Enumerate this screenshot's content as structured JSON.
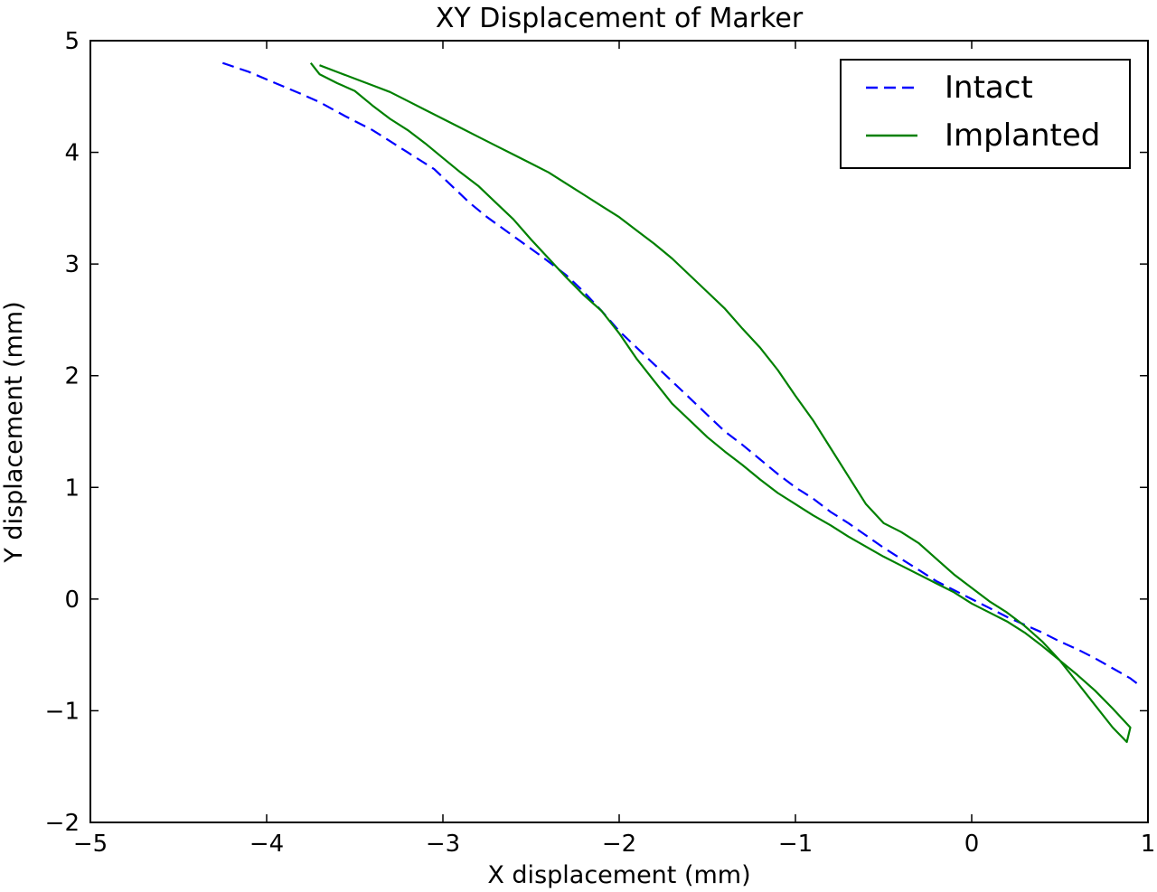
{
  "chart_data": {
    "type": "line",
    "title": "XY Displacement of Marker",
    "xlabel": "X displacement (mm)",
    "ylabel": "Y displacement (mm)",
    "xlim": [
      -5,
      1
    ],
    "ylim": [
      -2,
      5
    ],
    "x_ticks": [
      -5,
      -4,
      -3,
      -2,
      -1,
      0,
      1
    ],
    "y_ticks": [
      -2,
      -1,
      0,
      1,
      2,
      3,
      4,
      5
    ],
    "x_tick_labels": [
      "−5",
      "−4",
      "−3",
      "−2",
      "−1",
      "0",
      "1"
    ],
    "y_tick_labels": [
      "−2",
      "−1",
      "0",
      "1",
      "2",
      "3",
      "4",
      "5"
    ],
    "grid": false,
    "legend_position": "top-right",
    "series": [
      {
        "name": "Intact",
        "color": "#0000ff",
        "style": "dashed",
        "x": [
          -4.25,
          -4.1,
          -3.95,
          -3.8,
          -3.7,
          -3.55,
          -3.4,
          -3.3,
          -3.2,
          -3.05,
          -2.95,
          -2.85,
          -2.75,
          -2.6,
          -2.45,
          -2.3,
          -2.2,
          -2.1,
          -2.0,
          -1.9,
          -1.8,
          -1.7,
          -1.6,
          -1.5,
          -1.4,
          -1.3,
          -1.2,
          -1.1,
          -1.0,
          -0.9,
          -0.8,
          -0.7,
          -0.6,
          -0.5,
          -0.4,
          -0.3,
          -0.2,
          -0.1,
          0.0,
          0.1,
          0.2,
          0.3,
          0.4,
          0.5,
          0.6,
          0.7,
          0.8,
          0.9,
          0.95
        ],
        "y": [
          4.8,
          4.72,
          4.62,
          4.52,
          4.45,
          4.32,
          4.2,
          4.1,
          4.0,
          3.85,
          3.7,
          3.55,
          3.42,
          3.25,
          3.08,
          2.9,
          2.75,
          2.58,
          2.4,
          2.25,
          2.1,
          1.95,
          1.8,
          1.65,
          1.5,
          1.38,
          1.25,
          1.12,
          1.0,
          0.9,
          0.78,
          0.68,
          0.57,
          0.46,
          0.36,
          0.26,
          0.16,
          0.08,
          0.0,
          -0.08,
          -0.16,
          -0.23,
          -0.3,
          -0.38,
          -0.45,
          -0.53,
          -0.62,
          -0.71,
          -0.77
        ]
      },
      {
        "name": "Implanted",
        "color": "#008000",
        "style": "solid",
        "x": [
          -3.75,
          -3.7,
          -3.6,
          -3.5,
          -3.4,
          -3.3,
          -3.2,
          -3.1,
          -3.0,
          -2.9,
          -2.8,
          -2.7,
          -2.6,
          -2.5,
          -2.4,
          -2.3,
          -2.2,
          -2.1,
          -2.0,
          -1.9,
          -1.8,
          -1.7,
          -1.6,
          -1.5,
          -1.4,
          -1.3,
          -1.2,
          -1.1,
          -1.0,
          -0.9,
          -0.8,
          -0.7,
          -0.6,
          -0.5,
          -0.4,
          -0.3,
          -0.2,
          -0.1,
          0.0,
          0.1,
          0.2,
          0.3,
          0.4,
          0.5,
          0.6,
          0.7,
          0.8,
          0.9,
          0.88,
          0.8,
          0.7,
          0.6,
          0.5,
          0.4,
          0.3,
          0.2,
          0.1,
          0.0,
          -0.1,
          -0.2,
          -0.3,
          -0.4,
          -0.5,
          -0.6,
          -0.7,
          -0.8,
          -0.9,
          -1.0,
          -1.1,
          -1.2,
          -1.3,
          -1.4,
          -1.5,
          -1.6,
          -1.7,
          -1.8,
          -1.9,
          -2.0,
          -2.1,
          -2.2,
          -2.3,
          -2.4,
          -2.5,
          -2.6,
          -2.7,
          -2.8,
          -2.9,
          -3.0,
          -3.1,
          -3.2,
          -3.3,
          -3.4,
          -3.5,
          -3.6,
          -3.7
        ],
        "y": [
          4.8,
          4.7,
          4.62,
          4.55,
          4.42,
          4.3,
          4.2,
          4.08,
          3.95,
          3.82,
          3.7,
          3.55,
          3.4,
          3.22,
          3.05,
          2.88,
          2.72,
          2.58,
          2.38,
          2.15,
          1.95,
          1.75,
          1.6,
          1.45,
          1.32,
          1.2,
          1.07,
          0.95,
          0.85,
          0.75,
          0.66,
          0.56,
          0.47,
          0.38,
          0.3,
          0.22,
          0.14,
          0.06,
          -0.04,
          -0.12,
          -0.2,
          -0.3,
          -0.42,
          -0.55,
          -0.68,
          -0.82,
          -0.98,
          -1.15,
          -1.28,
          -1.15,
          -0.95,
          -0.75,
          -0.55,
          -0.38,
          -0.24,
          -0.12,
          -0.02,
          0.1,
          0.22,
          0.36,
          0.5,
          0.6,
          0.68,
          0.85,
          1.1,
          1.35,
          1.6,
          1.82,
          2.05,
          2.25,
          2.42,
          2.6,
          2.75,
          2.9,
          3.05,
          3.18,
          3.3,
          3.42,
          3.52,
          3.62,
          3.72,
          3.82,
          3.9,
          3.98,
          4.06,
          4.14,
          4.22,
          4.3,
          4.38,
          4.46,
          4.54,
          4.6,
          4.66,
          4.72,
          4.78
        ]
      }
    ]
  }
}
